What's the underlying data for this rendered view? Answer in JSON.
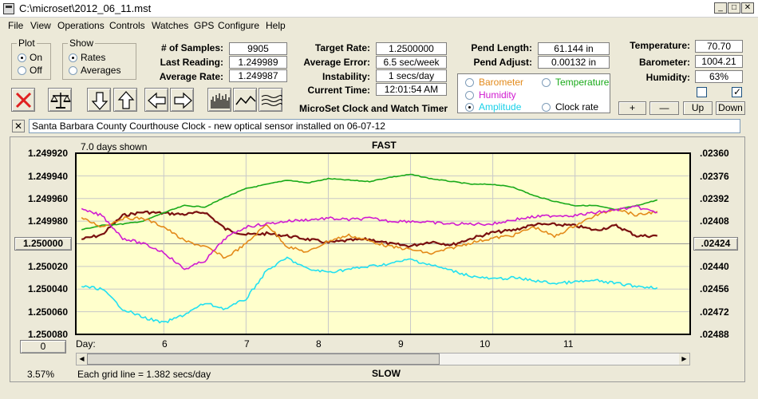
{
  "window": {
    "title": "C:\\microset\\2012_06_11.mst",
    "min": "_",
    "max": "□",
    "close": "✕"
  },
  "menu": [
    "File",
    "View",
    "Operations",
    "Controls",
    "Watches",
    "GPS",
    "Configure",
    "Help"
  ],
  "plot_group": {
    "legend": "Plot",
    "options": [
      {
        "label": "On",
        "selected": true
      },
      {
        "label": "Off",
        "selected": false
      }
    ]
  },
  "show_group": {
    "legend": "Show",
    "options": [
      {
        "label": "Rates",
        "selected": true
      },
      {
        "label": "Averages",
        "selected": false
      }
    ]
  },
  "stats": {
    "samples_label": "# of Samples:",
    "samples": "9905",
    "last_label": "Last Reading:",
    "last": "1.249989",
    "avg_rate_label": "Average Rate:",
    "avg_rate": "1.249987",
    "target_label": "Target Rate:",
    "target": "1.2500000",
    "avg_err_label": "Average Error:",
    "avg_err": "6.5 sec/week",
    "instability_label": "Instability:",
    "instability": "1 secs/day",
    "time_label": "Current Time:",
    "time": "12:01:54 AM",
    "pend_len_label": "Pend Length:",
    "pend_len": "61.144 in",
    "pend_adj_label": "Pend Adjust:",
    "pend_adj": "0.00132 in",
    "temp_label": "Temperature:",
    "temp": "70.70",
    "baro_label": "Barometer:",
    "baro": "1004.21",
    "humid_label": "Humidity:",
    "humid": "63%"
  },
  "app_name": "MicroSet Clock and Watch Timer",
  "toolbar_icons": [
    "delete-x-icon",
    "balance-scale-icon",
    "arrow-down-icon",
    "arrow-up-icon",
    "arrow-left-icon",
    "arrow-right-icon",
    "histogram-icon",
    "waveform-icon",
    "wavy-lines-icon"
  ],
  "series_selector": {
    "barometer": {
      "label": "Barometer",
      "color": "#e38a1a"
    },
    "temperature": {
      "label": "Temperature",
      "color": "#1aaa1a"
    },
    "humidity": {
      "label": "Humidity",
      "color": "#d01ad0"
    },
    "amplitude": {
      "label": "Amplitude",
      "color": "#1ad0e8",
      "selected": true
    },
    "clock_rate": {
      "label": "Clock rate"
    }
  },
  "buttons": {
    "plus": "+",
    "minus": "—",
    "up": "Up",
    "down": "Down"
  },
  "notes": "Santa Barbara County Courthouse Clock - new optical sensor installed on 06-07-12",
  "notes_close": "✕",
  "chart": {
    "days_shown": "7.0 days shown",
    "top_label": "FAST",
    "bottom_label": "SLOW",
    "left_ticks": [
      "1.249920",
      "1.249940",
      "1.249960",
      "1.249980",
      "1.250000",
      "1.250020",
      "1.250040",
      "1.250060",
      "1.250080"
    ],
    "right_ticks": [
      ".02360",
      ".02376",
      ".02392",
      ".02408",
      ".02424",
      ".02440",
      ".02456",
      ".02472",
      ".02488"
    ],
    "center_left_button": "1.250000",
    "center_right_button": ".02424",
    "zero_button": "0",
    "day_label": "Day:",
    "day_ticks": [
      "6",
      "7",
      "8",
      "9",
      "10",
      "11"
    ],
    "percent": "3.57%",
    "grid_note": "Each grid line = 1.382 secs/day",
    "colors": {
      "bg": "#ffffcc",
      "clock": "#7a1010",
      "temperature": "#1aaa1a",
      "barometer": "#e38a1a",
      "humidity": "#d01ad0",
      "amplitude": "#22e0f0"
    }
  },
  "chart_data": {
    "type": "line",
    "title": "FAST",
    "subtitle": "7.0 days shown",
    "xlabel": "Day:",
    "x_ticks": [
      6,
      7,
      8,
      9,
      10,
      11
    ],
    "ylabel_left": "",
    "ylim_left": [
      1.25008,
      1.24992
    ],
    "ylim_right": [
      0.02488,
      0.0236
    ],
    "x": [
      5.0,
      5.25,
      5.5,
      5.75,
      6.0,
      6.25,
      6.5,
      6.75,
      7.0,
      7.25,
      7.5,
      7.75,
      8.0,
      8.25,
      8.5,
      8.75,
      9.0,
      9.25,
      9.5,
      9.75,
      10.0,
      10.25,
      10.5,
      10.75,
      11.0,
      11.25,
      11.5,
      11.75,
      12.0
    ],
    "series": [
      {
        "name": "Clock rate",
        "axis": "left",
        "values": [
          1.249996,
          1.249992,
          1.249975,
          1.249972,
          1.249973,
          1.249974,
          1.249972,
          1.249987,
          1.249992,
          1.249991,
          1.249993,
          1.249996,
          1.249999,
          1.249997,
          1.249996,
          1.25,
          1.250002,
          1.249998,
          1.250001,
          1.249995,
          1.24999,
          1.249988,
          1.249983,
          1.249983,
          1.249984,
          1.249988,
          1.249984,
          1.249993,
          1.249993
        ]
      },
      {
        "name": "Temperature",
        "axis": "right",
        "values": [
          0.02414,
          0.02411,
          0.0241,
          0.02408,
          0.02402,
          0.02397,
          0.02398,
          0.02391,
          0.02385,
          0.02382,
          0.02379,
          0.02381,
          0.02378,
          0.02379,
          0.0238,
          0.02377,
          0.02375,
          0.02378,
          0.0238,
          0.02382,
          0.02382,
          0.02384,
          0.0239,
          0.02394,
          0.02397,
          0.02397,
          0.024,
          0.02397,
          0.02393
        ]
      },
      {
        "name": "Barometer",
        "axis": "right",
        "values": [
          0.02406,
          0.02412,
          0.02406,
          0.02406,
          0.02412,
          0.02422,
          0.02426,
          0.02434,
          0.02424,
          0.0241,
          0.02426,
          0.0243,
          0.02422,
          0.02418,
          0.02422,
          0.02426,
          0.02428,
          0.02431,
          0.02427,
          0.02423,
          0.0242,
          0.02418,
          0.02412,
          0.02419,
          0.02411,
          0.02404,
          0.02399,
          0.02404,
          0.02401
        ]
      },
      {
        "name": "Humidity",
        "axis": "right",
        "values": [
          0.024,
          0.02404,
          0.0242,
          0.02424,
          0.0243,
          0.02442,
          0.02436,
          0.0242,
          0.02412,
          0.0241,
          0.02408,
          0.02407,
          0.02406,
          0.02407,
          0.02406,
          0.02408,
          0.02408,
          0.02409,
          0.0241,
          0.0241,
          0.0241,
          0.02407,
          0.02405,
          0.02404,
          0.02404,
          0.02402,
          0.024,
          0.02398,
          0.02402
        ]
      },
      {
        "name": "Amplitude",
        "axis": "right",
        "values": [
          0.02454,
          0.02456,
          0.0247,
          0.02476,
          0.0248,
          0.02474,
          0.02466,
          0.0247,
          0.02463,
          0.02443,
          0.02434,
          0.02442,
          0.02444,
          0.02442,
          0.0244,
          0.02438,
          0.02435,
          0.02439,
          0.02443,
          0.02447,
          0.02449,
          0.02448,
          0.0245,
          0.02452,
          0.02451,
          0.0245,
          0.02452,
          0.02454,
          0.02455
        ]
      }
    ]
  }
}
